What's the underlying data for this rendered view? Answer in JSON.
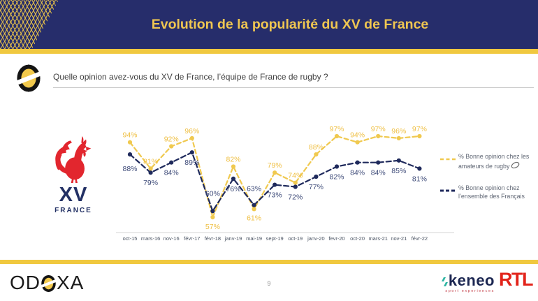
{
  "header": {
    "title": "Evolution de la popularité du XV de France"
  },
  "question": {
    "text": "Quelle opinion avez-vous du XV de France, l’équipe de France de rugby ?"
  },
  "team_logo": {
    "name": "XV",
    "country": "FRANCE"
  },
  "chart_data": {
    "type": "line",
    "categories": [
      "oct-15",
      "mars-16",
      "nov-16",
      "févr-17",
      "févr-18",
      "janv-19",
      "mai-19",
      "sept-19",
      "oct-19",
      "janv-20",
      "fevr-20",
      "oct-20",
      "mars-21",
      "nov-21",
      "févr-22"
    ],
    "series": [
      {
        "name": "% Bonne opinion chez les amateurs de rugby",
        "color": "#F0C94F",
        "label_color": "#EFBF42",
        "values": [
          94,
          81,
          92,
          96,
          57,
          82,
          61,
          79,
          74,
          88,
          97,
          94,
          97,
          96,
          97
        ]
      },
      {
        "name": "% Bonne opinion chez l’ensemble des Français",
        "color": "#1F2A5C",
        "label_color": "#3D4A78",
        "values": [
          88,
          79,
          84,
          89,
          60,
          76,
          63,
          73,
          72,
          77,
          82,
          84,
          84,
          85,
          81
        ]
      }
    ],
    "unit": "%",
    "ylim": [
      50,
      100
    ],
    "grid": false,
    "legend_position": "right",
    "axis_color": "#D6D6D6",
    "tick_color": "#4A5362"
  },
  "legend": {
    "items": [
      {
        "label": "% Bonne opinion chez les amateurs de rugby",
        "icon": "rugby-ball-icon"
      },
      {
        "label": "% Bonne opinion chez l’ensemble des Français"
      }
    ]
  },
  "footer": {
    "page_number": "9",
    "odoxa": {
      "part1": "OD",
      "part2": "XA"
    },
    "keneo": {
      "name": "keneo",
      "tagline": "sport experiences"
    },
    "rtl": "RTL"
  },
  "colors": {
    "header_bg": "#262D6B",
    "gold": "#F0C83F",
    "title_gold": "#EFC651",
    "series_amateurs": "#F0C94F",
    "series_francais": "#1F2A5C",
    "rooster_red": "#E2262E",
    "rtl_red": "#E2231A",
    "keneo_navy": "#1C2752",
    "keneo_teal": "#2FB5A3"
  }
}
